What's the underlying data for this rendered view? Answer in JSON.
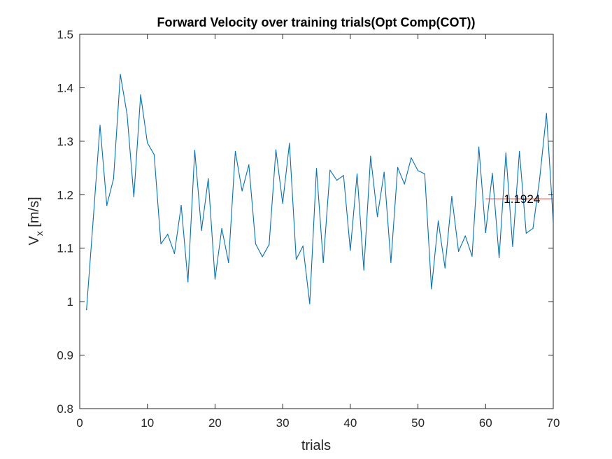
{
  "chart_data": {
    "type": "line",
    "title": "Forward Velocity over training trials(Opt Comp(COT))",
    "xlabel": "trials",
    "ylabel_main": "V",
    "ylabel_sub": "x",
    "ylabel_unit": " [m/s]",
    "xlim": [
      0,
      70
    ],
    "ylim": [
      0.8,
      1.5
    ],
    "xticks": [
      0,
      10,
      20,
      30,
      40,
      50,
      60,
      70
    ],
    "xtick_labels": [
      "0",
      "10",
      "20",
      "30",
      "40",
      "50",
      "60",
      "70"
    ],
    "yticks": [
      0.8,
      0.9,
      1.0,
      1.1,
      1.2,
      1.3,
      1.4,
      1.5
    ],
    "ytick_labels": [
      "0.8",
      "0.9",
      "1",
      "1.1",
      "1.2",
      "1.3",
      "1.4",
      "1.5"
    ],
    "grid": false,
    "series": [
      {
        "color": "#0072BD",
        "x": [
          1,
          2,
          3,
          4,
          5,
          6,
          7,
          8,
          9,
          10,
          11,
          12,
          13,
          14,
          15,
          16,
          17,
          18,
          19,
          20,
          21,
          22,
          23,
          24,
          25,
          26,
          27,
          28,
          29,
          30,
          31,
          32,
          33,
          34,
          35,
          36,
          37,
          38,
          39,
          40,
          41,
          42,
          43,
          44,
          45,
          46,
          47,
          48,
          49,
          50,
          51,
          52,
          53,
          54,
          55,
          56,
          57,
          58,
          59,
          60,
          61,
          62,
          63,
          64,
          65,
          66,
          67,
          68,
          69,
          70
        ],
        "values": [
          0.985,
          1.155,
          1.33,
          1.18,
          1.23,
          1.425,
          1.35,
          1.196,
          1.387,
          1.297,
          1.275,
          1.108,
          1.126,
          1.09,
          1.18,
          1.037,
          1.283,
          1.133,
          1.23,
          1.042,
          1.137,
          1.073,
          1.281,
          1.207,
          1.256,
          1.108,
          1.084,
          1.107,
          1.284,
          1.184,
          1.296,
          1.079,
          1.104,
          0.996,
          1.249,
          1.073,
          1.246,
          1.227,
          1.236,
          1.096,
          1.239,
          1.059,
          1.272,
          1.159,
          1.242,
          1.073,
          1.251,
          1.22,
          1.269,
          1.245,
          1.239,
          1.024,
          1.151,
          1.063,
          1.197,
          1.094,
          1.123,
          1.085,
          1.289,
          1.129,
          1.24,
          1.082,
          1.278,
          1.103,
          1.281,
          1.128,
          1.137,
          1.231,
          1.352,
          1.149
        ]
      }
    ],
    "mean_line": {
      "color": "#FF6F61",
      "x_start": 60,
      "x_end": 70,
      "value": 1.1924
    },
    "annotation": {
      "text": "1.1924",
      "x": 63,
      "y": 1.1924
    }
  }
}
